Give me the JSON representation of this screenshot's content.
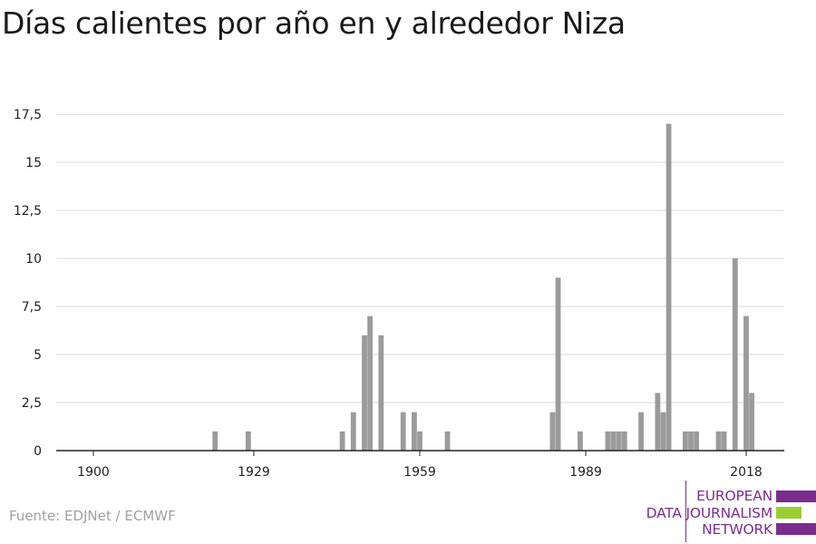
{
  "title": "Días calientes por año en y alrededor Niza",
  "source": "Fuente: EDJNet / ECMWF",
  "logo": {
    "lines": [
      "EUROPEAN",
      "DATA JOURNALISM",
      "NETWORK"
    ],
    "colors": [
      "#7b2d8e",
      "#9acd32",
      "#7b2d8e"
    ]
  },
  "chart_data": {
    "type": "bar",
    "title": "Días calientes por año en y alrededor Niza",
    "xlabel": "",
    "ylabel": "",
    "xlim": [
      1900,
      2020
    ],
    "ylim": [
      0,
      17.5
    ],
    "x_ticks": [
      1900,
      1929,
      1959,
      1989,
      2018
    ],
    "y_ticks": [
      0,
      2.5,
      5,
      7.5,
      10,
      12.5,
      15,
      17.5
    ],
    "y_tick_labels": [
      "0",
      "2,5",
      "5",
      "7,5",
      "10",
      "12,5",
      "15",
      "17,5"
    ],
    "grid": true,
    "bar_color": "#9b9b9b",
    "x": [
      1922,
      1928,
      1945,
      1947,
      1949,
      1950,
      1952,
      1956,
      1958,
      1959,
      1964,
      1983,
      1984,
      1988,
      1993,
      1994,
      1995,
      1996,
      1999,
      2002,
      2003,
      2004,
      2007,
      2008,
      2009,
      2013,
      2014,
      2016,
      2018,
      2019
    ],
    "values": [
      1,
      1,
      1,
      2,
      6,
      7,
      6,
      2,
      2,
      1,
      1,
      2,
      9,
      1,
      1,
      1,
      1,
      1,
      2,
      3,
      2,
      17,
      1,
      1,
      1,
      1,
      1,
      10,
      7,
      3
    ]
  }
}
